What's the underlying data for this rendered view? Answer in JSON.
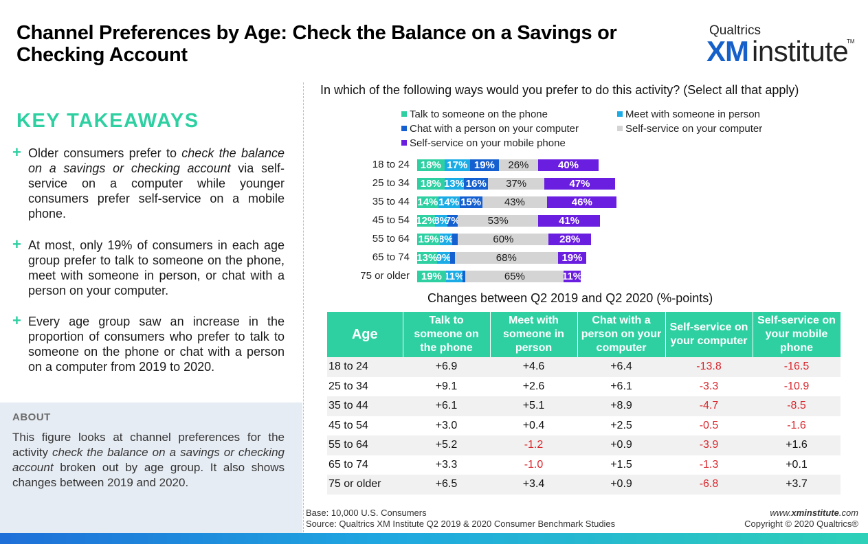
{
  "title": "Channel Preferences by Age: Check the Balance on a Savings or Checking Account",
  "logo": {
    "top": "Qualtrics",
    "xm": "XM",
    "institute": "institute",
    "tm": "TM"
  },
  "key_takeaways": {
    "heading": "KEY TAKEAWAYS",
    "items": [
      {
        "plain_a": "Older consumers prefer to ",
        "italic": "check the balance on a savings or checking account",
        "plain_b": " via self-service on a computer while younger consumers prefer self-service on a mobile phone."
      },
      {
        "plain_a": "At most, only 19% of consumers in each age group prefer to talk to someone on the phone, meet with someone in person, or chat with a person on your computer.",
        "italic": "",
        "plain_b": ""
      },
      {
        "plain_a": "Every age group saw an increase in the proportion of consumers who prefer to talk to someone on the phone or chat with a person on a computer from 2019 to 2020.",
        "italic": "",
        "plain_b": ""
      }
    ]
  },
  "about": {
    "heading": "ABOUT",
    "plain_a": "This figure looks at channel preferences for the activity ",
    "italic": "check the balance on a savings or checking account",
    "plain_b": " broken out by age group. It also shows changes between 2019 and 2020."
  },
  "colors": {
    "talk": "#2ed0a2",
    "meet": "#1bace6",
    "chat": "#1560d1",
    "self_computer": "#d4d4d4",
    "self_mobile": "#6a1fe0",
    "accent": "#2ed0a2",
    "negative": "#d9262c"
  },
  "chart_data": {
    "type": "bar",
    "orientation": "horizontal",
    "stacked": true,
    "title": "In which of the following ways would you prefer to do this activity? (Select all that apply)",
    "categories": [
      "18 to 24",
      "25 to 34",
      "35 to 44",
      "45 to 54",
      "55 to 64",
      "65 to 74",
      "75 or older"
    ],
    "series": [
      {
        "name": "Talk to someone on the phone",
        "key": "talk",
        "values": [
          18,
          18,
          14,
          12,
          15,
          13,
          19
        ]
      },
      {
        "name": "Meet with someone in person",
        "key": "meet",
        "values": [
          17,
          13,
          14,
          8,
          8,
          9,
          11
        ]
      },
      {
        "name": "Chat with a person on your computer",
        "key": "chat",
        "values": [
          19,
          16,
          15,
          7,
          4,
          3,
          2
        ]
      },
      {
        "name": "Self-service on your computer",
        "key": "self_computer",
        "values": [
          26,
          37,
          43,
          53,
          60,
          68,
          65
        ]
      },
      {
        "name": "Self-service on your mobile phone",
        "key": "self_mobile",
        "values": [
          40,
          47,
          46,
          41,
          28,
          19,
          11
        ]
      }
    ],
    "data_labels": [
      [
        "18%",
        "17%",
        "19%",
        "26%",
        "40%"
      ],
      [
        "18%",
        "13%",
        "16%",
        "37%",
        "47%"
      ],
      [
        "14%",
        "14%",
        "15%",
        "43%",
        "46%"
      ],
      [
        "12%",
        "8%",
        "7%",
        "53%",
        "41%"
      ],
      [
        "15%",
        "8%",
        "",
        "60%",
        "28%"
      ],
      [
        "13%",
        "9%",
        "",
        "68%",
        "19%"
      ],
      [
        "19%",
        "11%",
        "",
        "65%",
        "11%"
      ]
    ],
    "legend": "top",
    "grid": false
  },
  "changes_table": {
    "title": "Changes between Q2 2019 and Q2 2020 (%-points)",
    "headers": [
      "Age",
      "Talk to someone on the phone",
      "Meet with someone in person",
      "Chat with a person on your computer",
      "Self-service on your computer",
      "Self-service on your mobile phone"
    ],
    "rows": [
      [
        "18 to 24",
        "+6.9",
        "+4.6",
        "+6.4",
        "-13.8",
        "-16.5"
      ],
      [
        "25 to 34",
        "+9.1",
        "+2.6",
        "+6.1",
        "-3.3",
        "-10.9"
      ],
      [
        "35 to 44",
        "+6.1",
        "+5.1",
        "+8.9",
        "-4.7",
        "-8.5"
      ],
      [
        "45 to 54",
        "+3.0",
        "+0.4",
        "+2.5",
        "-0.5",
        "-1.6"
      ],
      [
        "55 to 64",
        "+5.2",
        "-1.2",
        "+0.9",
        "-3.9",
        "+1.6"
      ],
      [
        "65 to 74",
        "+3.3",
        "-1.0",
        "+1.5",
        "-1.3",
        "+0.1"
      ],
      [
        "75 or older",
        "+6.5",
        "+3.4",
        "+0.9",
        "-6.8",
        "+3.7"
      ]
    ]
  },
  "footer": {
    "base": "Base: 10,000 U.S. Consumers",
    "source": "Source: Qualtrics XM Institute Q2 2019 & 2020 Consumer Benchmark Studies",
    "url_prefix": "www.",
    "url_bold": "xminstitute",
    "url_suffix": ".com",
    "copyright": "Copyright © 2020 Qualtrics®"
  }
}
